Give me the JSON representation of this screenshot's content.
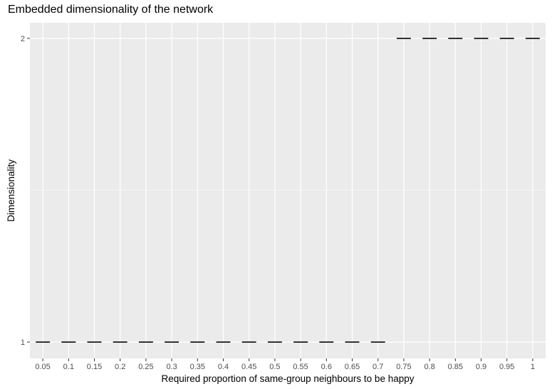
{
  "chart_data": {
    "type": "boxplot",
    "title": "Embedded dimensionality of the network",
    "xlabel": "Required proportion of same-group neighbours to be happy",
    "ylabel": "Dimensionality",
    "categories": [
      "0.05",
      "0.1",
      "0.15",
      "0.2",
      "0.25",
      "0.3",
      "0.35",
      "0.4",
      "0.45",
      "0.5",
      "0.55",
      "0.6",
      "0.65",
      "0.7",
      "0.75",
      "0.8",
      "0.85",
      "0.9",
      "0.95",
      "1"
    ],
    "values": [
      1,
      1,
      1,
      1,
      1,
      1,
      1,
      1,
      1,
      1,
      1,
      1,
      1,
      1,
      2,
      2,
      2,
      2,
      2,
      2
    ],
    "yticks": [
      1,
      2
    ],
    "ylim": [
      1,
      2
    ],
    "grid": true,
    "legend": "none",
    "colors": {
      "panel": "#ebebeb",
      "grid_major": "#ffffff",
      "box": "#333333",
      "tick_text": "#4d4d4d",
      "tick_mark": "#333333"
    }
  }
}
